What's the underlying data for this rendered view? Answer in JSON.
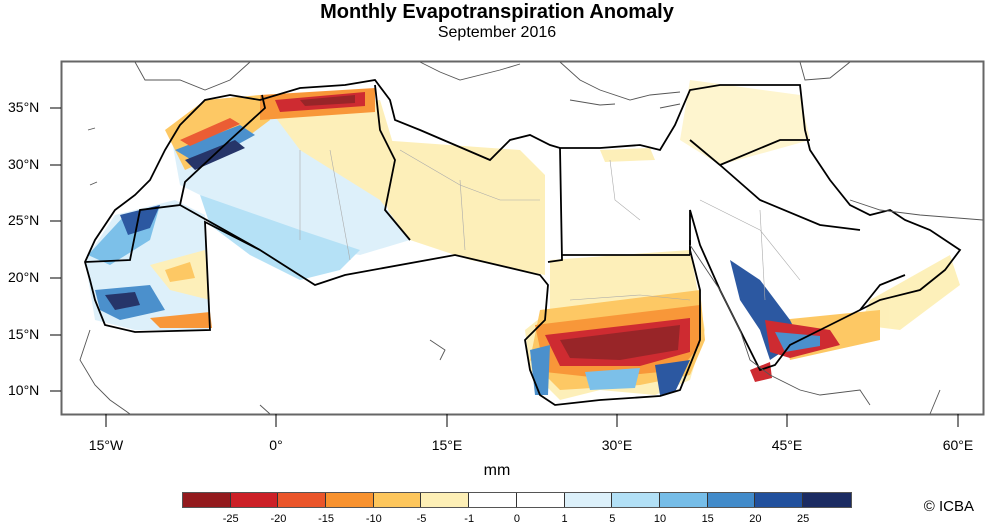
{
  "title": "Monthly Evapotranspiration Anomaly",
  "subtitle": "September 2016",
  "unit_label": "mm",
  "credit": "© ICBA",
  "axes": {
    "lat_ticks": [
      "35°N",
      "30°N",
      "25°N",
      "20°N",
      "15°N",
      "10°N"
    ],
    "lon_ticks": [
      "15°W",
      "0°",
      "15°E",
      "30°E",
      "45°E",
      "60°E"
    ],
    "lat_range_deg": [
      8,
      38
    ],
    "lon_range_deg": [
      -19,
      63
    ]
  },
  "colorbar": {
    "levels": [
      "-25",
      "-20",
      "-15",
      "-10",
      "-5",
      "-1",
      "0",
      "1",
      "5",
      "10",
      "15",
      "20",
      "25"
    ],
    "colors": [
      "#931a1d",
      "#cc2027",
      "#ea552a",
      "#f8922f",
      "#fdc65c",
      "#fdefb6",
      "#ffffff",
      "#ffffff",
      "#dcf0fa",
      "#b2e0f6",
      "#76bde8",
      "#428bca",
      "#21509d",
      "#1b2b62"
    ]
  },
  "chart_data": {
    "type": "heatmap",
    "title": "Monthly Evapotranspiration Anomaly",
    "subtitle": "September 2016",
    "xlabel": "",
    "ylabel": "",
    "colorbar_label": "mm",
    "x_ticks": [
      "15°W",
      "0°",
      "15°E",
      "30°E",
      "45°E",
      "60°E"
    ],
    "y_ticks": [
      "35°N",
      "30°N",
      "25°N",
      "20°N",
      "15°N",
      "10°N"
    ],
    "color_levels": [
      -25,
      -20,
      -15,
      -10,
      -5,
      -1,
      0,
      1,
      5,
      10,
      15,
      20,
      25
    ],
    "region": "Middle East and North Africa",
    "grid": false
  }
}
